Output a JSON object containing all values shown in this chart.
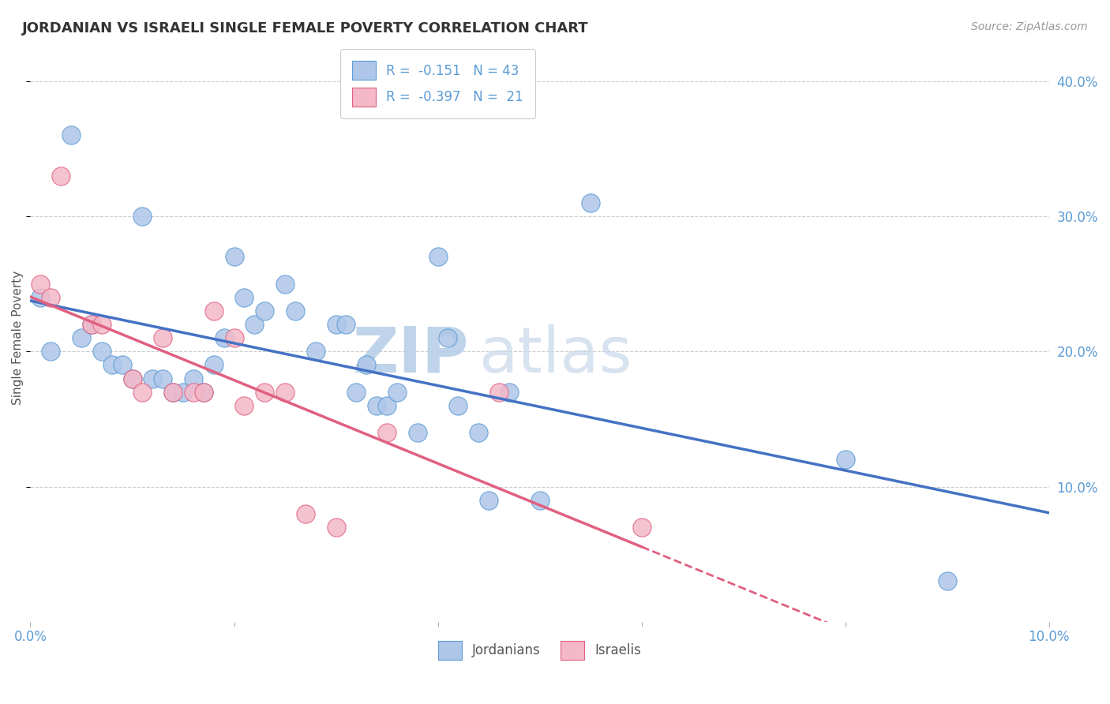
{
  "title": "JORDANIAN VS ISRAELI SINGLE FEMALE POVERTY CORRELATION CHART",
  "source": "Source: ZipAtlas.com",
  "ylabel": "Single Female Poverty",
  "xlim": [
    0.0,
    0.1
  ],
  "ylim": [
    0.0,
    0.42
  ],
  "xticks": [
    0.0,
    0.02,
    0.04,
    0.06,
    0.08,
    0.1
  ],
  "xtick_labels": [
    "0.0%",
    "",
    "",
    "",
    "",
    "10.0%"
  ],
  "yticks": [
    0.1,
    0.2,
    0.3,
    0.4
  ],
  "ytick_labels": [
    "10.0%",
    "20.0%",
    "30.0%",
    "40.0%"
  ],
  "background_color": "#ffffff",
  "grid_color": "#cccccc",
  "title_color": "#333333",
  "axis_color": "#5b9bd5",
  "jordanian_color": "#aec6e8",
  "jordanian_edge": "#5b9bd5",
  "israeli_color": "#f4b8c8",
  "israeli_edge": "#e06080",
  "trend_jordan_color": "#4472c4",
  "trend_israel_color": "#e06080",
  "legend_label_jordan": "R =  -0.151   N = 43",
  "legend_label_israel": "R =  -0.397   N =  21",
  "jordanian_x": [
    0.001,
    0.002,
    0.004,
    0.005,
    0.006,
    0.007,
    0.008,
    0.009,
    0.01,
    0.011,
    0.012,
    0.013,
    0.014,
    0.015,
    0.016,
    0.017,
    0.018,
    0.019,
    0.02,
    0.021,
    0.022,
    0.023,
    0.025,
    0.026,
    0.028,
    0.03,
    0.031,
    0.032,
    0.033,
    0.034,
    0.035,
    0.036,
    0.038,
    0.04,
    0.041,
    0.042,
    0.044,
    0.045,
    0.047,
    0.05,
    0.055,
    0.08,
    0.09
  ],
  "jordanian_y": [
    0.24,
    0.2,
    0.36,
    0.21,
    0.22,
    0.2,
    0.19,
    0.19,
    0.18,
    0.3,
    0.18,
    0.18,
    0.17,
    0.17,
    0.18,
    0.17,
    0.19,
    0.21,
    0.27,
    0.24,
    0.22,
    0.23,
    0.25,
    0.23,
    0.2,
    0.22,
    0.22,
    0.17,
    0.19,
    0.16,
    0.16,
    0.17,
    0.14,
    0.27,
    0.21,
    0.16,
    0.14,
    0.09,
    0.17,
    0.09,
    0.31,
    0.12,
    0.03
  ],
  "israeli_x": [
    0.001,
    0.002,
    0.003,
    0.006,
    0.007,
    0.01,
    0.011,
    0.013,
    0.014,
    0.016,
    0.017,
    0.018,
    0.02,
    0.021,
    0.023,
    0.025,
    0.027,
    0.03,
    0.035,
    0.046,
    0.06
  ],
  "israeli_y": [
    0.25,
    0.24,
    0.33,
    0.22,
    0.22,
    0.18,
    0.17,
    0.21,
    0.17,
    0.17,
    0.17,
    0.23,
    0.21,
    0.16,
    0.17,
    0.17,
    0.08,
    0.07,
    0.14,
    0.17,
    0.07
  ],
  "watermark_zip": "ZIP",
  "watermark_atlas": "atlas",
  "watermark_color": "#dce8f5"
}
